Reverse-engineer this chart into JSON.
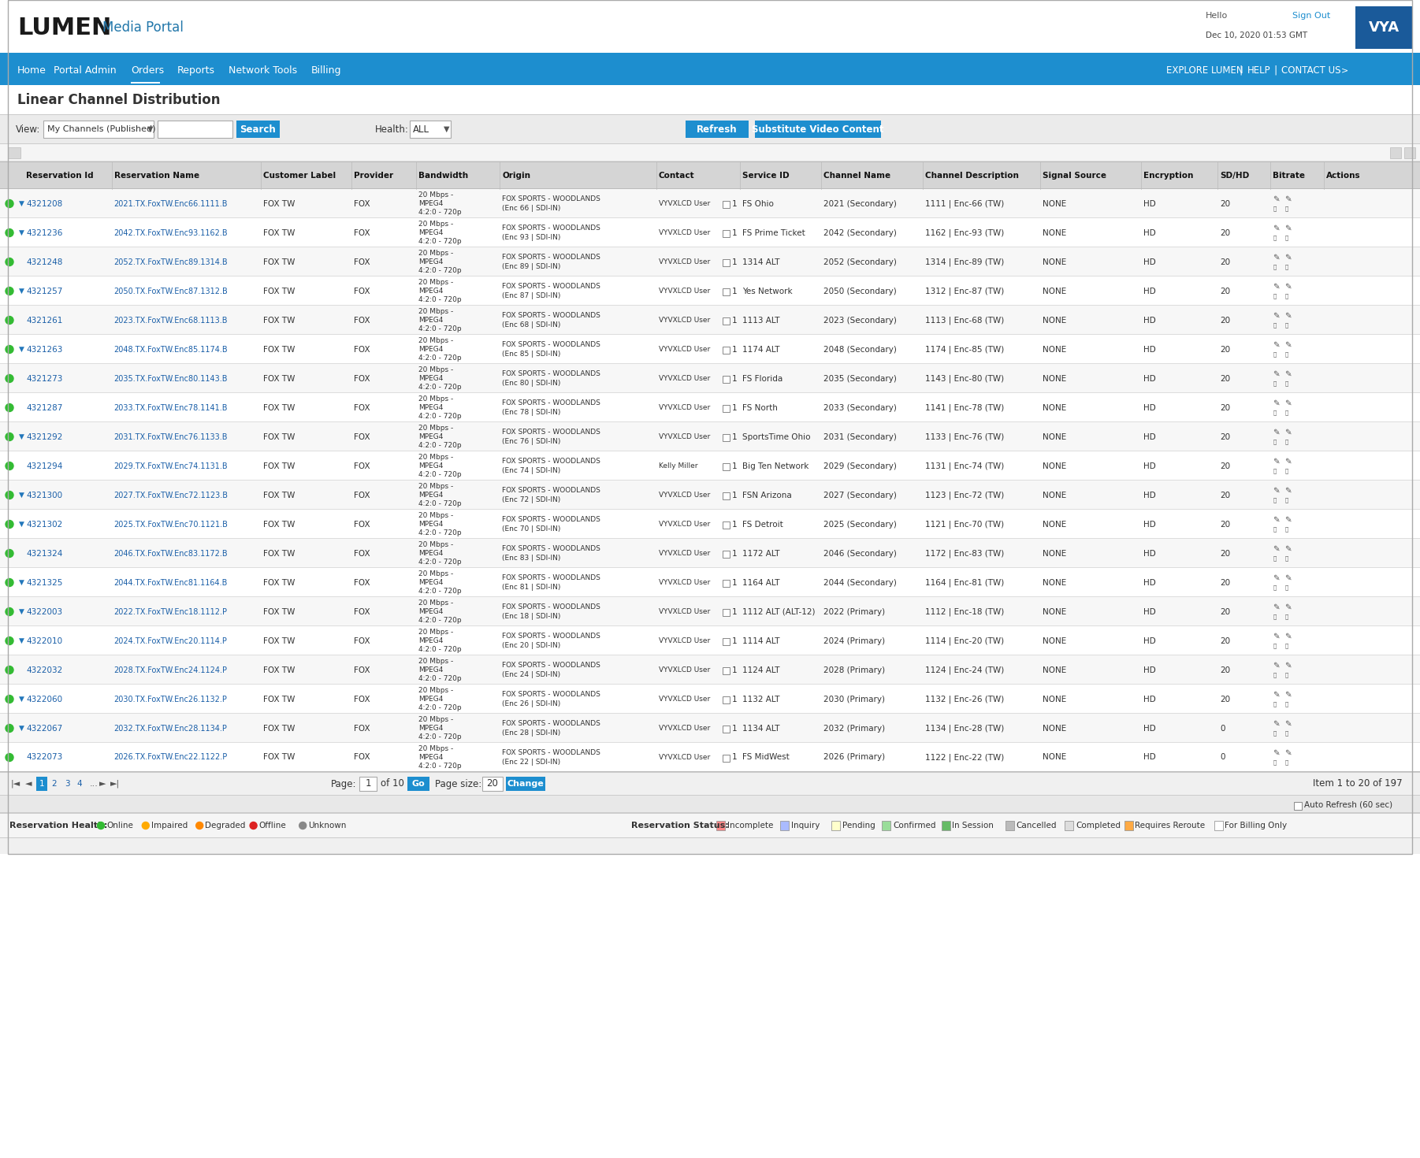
{
  "title": "Linear Channel Distribution",
  "nav_bg": "#1d8ecf",
  "nav_items": [
    "Home",
    "Portal Admin",
    "Orders",
    "Reports",
    "Network Tools",
    "Billing"
  ],
  "nav_right": [
    "EXPLORE LUMEN",
    "HELP",
    "CONTACT US"
  ],
  "logo_text": "LUMEN",
  "portal_text": "Media Portal",
  "hello_text": "Hello",
  "signout_text": "Sign Out",
  "date_text": "Dec 10, 2020 01:53 GMT",
  "view_value": "My Channels (Published)",
  "health_value": "ALL",
  "columns": [
    "Reservation Id",
    "Reservation Name",
    "Customer Label",
    "Provider",
    "Bandwidth",
    "Origin",
    "Contact",
    "Service ID",
    "Channel Name",
    "Channel Description",
    "Signal Source",
    "Encryption",
    "SD/HD",
    "Bitrate",
    "Actions"
  ],
  "col_props": [
    0.063,
    0.107,
    0.065,
    0.046,
    0.06,
    0.112,
    0.06,
    0.058,
    0.073,
    0.084,
    0.072,
    0.055,
    0.038,
    0.038,
    0.048
  ],
  "rows": [
    [
      "4321208",
      "2021.TX.FoxTW.Enc66.1111.B",
      "FOX TW",
      "FOX",
      "20 Mbps -\nMPEG4\n4:2:0 - 720p",
      "FOX SPORTS - WOODLANDS\n(Enc 66 | SDI-IN)",
      "VYVXLCD User",
      "1",
      "FS Ohio",
      "2021 (Secondary)",
      "1111 | Enc-66 (TW)",
      "NONE",
      "HD",
      "20",
      true
    ],
    [
      "4321236",
      "2042.TX.FoxTW.Enc93.1162.B",
      "FOX TW",
      "FOX",
      "20 Mbps -\nMPEG4\n4:2:0 - 720p",
      "FOX SPORTS - WOODLANDS\n(Enc 93 | SDI-IN)",
      "VYVXLCD User",
      "1",
      "FS Prime Ticket",
      "2042 (Secondary)",
      "1162 | Enc-93 (TW)",
      "NONE",
      "HD",
      "20",
      true
    ],
    [
      "4321248",
      "2052.TX.FoxTW.Enc89.1314.B",
      "FOX TW",
      "FOX",
      "20 Mbps -\nMPEG4\n4:2:0 - 720p",
      "FOX SPORTS - WOODLANDS\n(Enc 89 | SDI-IN)",
      "VYVXLCD User",
      "1",
      "1314 ALT",
      "2052 (Secondary)",
      "1314 | Enc-89 (TW)",
      "NONE",
      "HD",
      "20",
      false
    ],
    [
      "4321257",
      "2050.TX.FoxTW.Enc87.1312.B",
      "FOX TW",
      "FOX",
      "20 Mbps -\nMPEG4\n4:2:0 - 720p",
      "FOX SPORTS - WOODLANDS\n(Enc 87 | SDI-IN)",
      "VYVXLCD User",
      "1",
      "Yes Network",
      "2050 (Secondary)",
      "1312 | Enc-87 (TW)",
      "NONE",
      "HD",
      "20",
      true
    ],
    [
      "4321261",
      "2023.TX.FoxTW.Enc68.1113.B",
      "FOX TW",
      "FOX",
      "20 Mbps -\nMPEG4\n4:2:0 - 720p",
      "FOX SPORTS - WOODLANDS\n(Enc 68 | SDI-IN)",
      "VYVXLCD User",
      "1",
      "1113 ALT",
      "2023 (Secondary)",
      "1113 | Enc-68 (TW)",
      "NONE",
      "HD",
      "20",
      false
    ],
    [
      "4321263",
      "2048.TX.FoxTW.Enc85.1174.B",
      "FOX TW",
      "FOX",
      "20 Mbps -\nMPEG4\n4:2:0 - 720p",
      "FOX SPORTS - WOODLANDS\n(Enc 85 | SDI-IN)",
      "VYVXLCD User",
      "1",
      "1174 ALT",
      "2048 (Secondary)",
      "1174 | Enc-85 (TW)",
      "NONE",
      "HD",
      "20",
      true
    ],
    [
      "4321273",
      "2035.TX.FoxTW.Enc80.1143.B",
      "FOX TW",
      "FOX",
      "20 Mbps -\nMPEG4\n4:2:0 - 720p",
      "FOX SPORTS - WOODLANDS\n(Enc 80 | SDI-IN)",
      "VYVXLCD User",
      "1",
      "FS Florida",
      "2035 (Secondary)",
      "1143 | Enc-80 (TW)",
      "NONE",
      "HD",
      "20",
      false
    ],
    [
      "4321287",
      "2033.TX.FoxTW.Enc78.1141.B",
      "FOX TW",
      "FOX",
      "20 Mbps -\nMPEG4\n4:2:0 - 720p",
      "FOX SPORTS - WOODLANDS\n(Enc 78 | SDI-IN)",
      "VYVXLCD User",
      "1",
      "FS North",
      "2033 (Secondary)",
      "1141 | Enc-78 (TW)",
      "NONE",
      "HD",
      "20",
      false
    ],
    [
      "4321292",
      "2031.TX.FoxTW.Enc76.1133.B",
      "FOX TW",
      "FOX",
      "20 Mbps -\nMPEG4\n4:2:0 - 720p",
      "FOX SPORTS - WOODLANDS\n(Enc 76 | SDI-IN)",
      "VYVXLCD User",
      "1",
      "SportsTime Ohio",
      "2031 (Secondary)",
      "1133 | Enc-76 (TW)",
      "NONE",
      "HD",
      "20",
      true
    ],
    [
      "4321294",
      "2029.TX.FoxTW.Enc74.1131.B",
      "FOX TW",
      "FOX",
      "20 Mbps -\nMPEG4\n4:2:0 - 720p",
      "FOX SPORTS - WOODLANDS\n(Enc 74 | SDI-IN)",
      "Kelly Miller",
      "1",
      "Big Ten Network",
      "2029 (Secondary)",
      "1131 | Enc-74 (TW)",
      "NONE",
      "HD",
      "20",
      false
    ],
    [
      "4321300",
      "2027.TX.FoxTW.Enc72.1123.B",
      "FOX TW",
      "FOX",
      "20 Mbps -\nMPEG4\n4:2:0 - 720p",
      "FOX SPORTS - WOODLANDS\n(Enc 72 | SDI-IN)",
      "VYVXLCD User",
      "1",
      "FSN Arizona",
      "2027 (Secondary)",
      "1123 | Enc-72 (TW)",
      "NONE",
      "HD",
      "20",
      true
    ],
    [
      "4321302",
      "2025.TX.FoxTW.Enc70.1121.B",
      "FOX TW",
      "FOX",
      "20 Mbps -\nMPEG4\n4:2:0 - 720p",
      "FOX SPORTS - WOODLANDS\n(Enc 70 | SDI-IN)",
      "VYVXLCD User",
      "1",
      "FS Detroit",
      "2025 (Secondary)",
      "1121 | Enc-70 (TW)",
      "NONE",
      "HD",
      "20",
      true
    ],
    [
      "4321324",
      "2046.TX.FoxTW.Enc83.1172.B",
      "FOX TW",
      "FOX",
      "20 Mbps -\nMPEG4\n4:2:0 - 720p",
      "FOX SPORTS - WOODLANDS\n(Enc 83 | SDI-IN)",
      "VYVXLCD User",
      "1",
      "1172 ALT",
      "2046 (Secondary)",
      "1172 | Enc-83 (TW)",
      "NONE",
      "HD",
      "20",
      false
    ],
    [
      "4321325",
      "2044.TX.FoxTW.Enc81.1164.B",
      "FOX TW",
      "FOX",
      "20 Mbps -\nMPEG4\n4:2:0 - 720p",
      "FOX SPORTS - WOODLANDS\n(Enc 81 | SDI-IN)",
      "VYVXLCD User",
      "1",
      "1164 ALT",
      "2044 (Secondary)",
      "1164 | Enc-81 (TW)",
      "NONE",
      "HD",
      "20",
      true
    ],
    [
      "4322003",
      "2022.TX.FoxTW.Enc18.1112.P",
      "FOX TW",
      "FOX",
      "20 Mbps -\nMPEG4\n4:2:0 - 720p",
      "FOX SPORTS - WOODLANDS\n(Enc 18 | SDI-IN)",
      "VYVXLCD User",
      "1",
      "1112 ALT (ALT-12)",
      "2022 (Primary)",
      "1112 | Enc-18 (TW)",
      "NONE",
      "HD",
      "20",
      true
    ],
    [
      "4322010",
      "2024.TX.FoxTW.Enc20.1114.P",
      "FOX TW",
      "FOX",
      "20 Mbps -\nMPEG4\n4:2:0 - 720p",
      "FOX SPORTS - WOODLANDS\n(Enc 20 | SDI-IN)",
      "VYVXLCD User",
      "1",
      "1114 ALT",
      "2024 (Primary)",
      "1114 | Enc-20 (TW)",
      "NONE",
      "HD",
      "20",
      true
    ],
    [
      "4322032",
      "2028.TX.FoxTW.Enc24.1124.P",
      "FOX TW",
      "FOX",
      "20 Mbps -\nMPEG4\n4:2:0 - 720p",
      "FOX SPORTS - WOODLANDS\n(Enc 24 | SDI-IN)",
      "VYVXLCD User",
      "1",
      "1124 ALT",
      "2028 (Primary)",
      "1124 | Enc-24 (TW)",
      "NONE",
      "HD",
      "20",
      false
    ],
    [
      "4322060",
      "2030.TX.FoxTW.Enc26.1132.P",
      "FOX TW",
      "FOX",
      "20 Mbps -\nMPEG4\n4:2:0 - 720p",
      "FOX SPORTS - WOODLANDS\n(Enc 26 | SDI-IN)",
      "VYVXLCD User",
      "1",
      "1132 ALT",
      "2030 (Primary)",
      "1132 | Enc-26 (TW)",
      "NONE",
      "HD",
      "20",
      true
    ],
    [
      "4322067",
      "2032.TX.FoxTW.Enc28.1134.P",
      "FOX TW",
      "FOX",
      "20 Mbps -\nMPEG4\n4:2:0 - 720p",
      "FOX SPORTS - WOODLANDS\n(Enc 28 | SDI-IN)",
      "VYVXLCD User",
      "1",
      "1134 ALT",
      "2032 (Primary)",
      "1134 | Enc-28 (TW)",
      "NONE",
      "HD",
      "0",
      true
    ],
    [
      "4322073",
      "2026.TX.FoxTW.Enc22.1122.P",
      "FOX TW",
      "FOX",
      "20 Mbps -\nMPEG4\n4:2:0 - 720p",
      "FOX SPORTS - WOODLANDS\n(Enc 22 | SDI-IN)",
      "VYVXLCD User",
      "1",
      "FS MidWest",
      "2026 (Primary)",
      "1122 | Enc-22 (TW)",
      "NONE",
      "HD",
      "0",
      false
    ]
  ],
  "footer_health_items": [
    {
      "label": "Online",
      "color": "#33bb33"
    },
    {
      "label": "Impaired",
      "color": "#ffaa00"
    },
    {
      "label": "Degraded",
      "color": "#ff8800"
    },
    {
      "label": "Offline",
      "color": "#dd2222"
    },
    {
      "label": "Unknown",
      "color": "#888888"
    }
  ],
  "footer_status_items": [
    {
      "label": "Incomplete",
      "color": "#ff8888"
    },
    {
      "label": "Inquiry",
      "color": "#aabbff"
    },
    {
      "label": "Pending",
      "color": "#ffffcc"
    },
    {
      "label": "Confirmed",
      "color": "#99dd99"
    },
    {
      "label": "In Session",
      "color": "#66bb66"
    },
    {
      "label": "Cancelled",
      "color": "#bbbbbb"
    },
    {
      "label": "Completed",
      "color": "#dddddd"
    },
    {
      "label": "Requires Reroute",
      "color": "#ffaa44"
    },
    {
      "label": "For Billing Only",
      "color": "#ffffff"
    }
  ],
  "item_count": "Item 1 to 20 of 197",
  "auto_refresh": "Auto Refresh (60 sec)"
}
